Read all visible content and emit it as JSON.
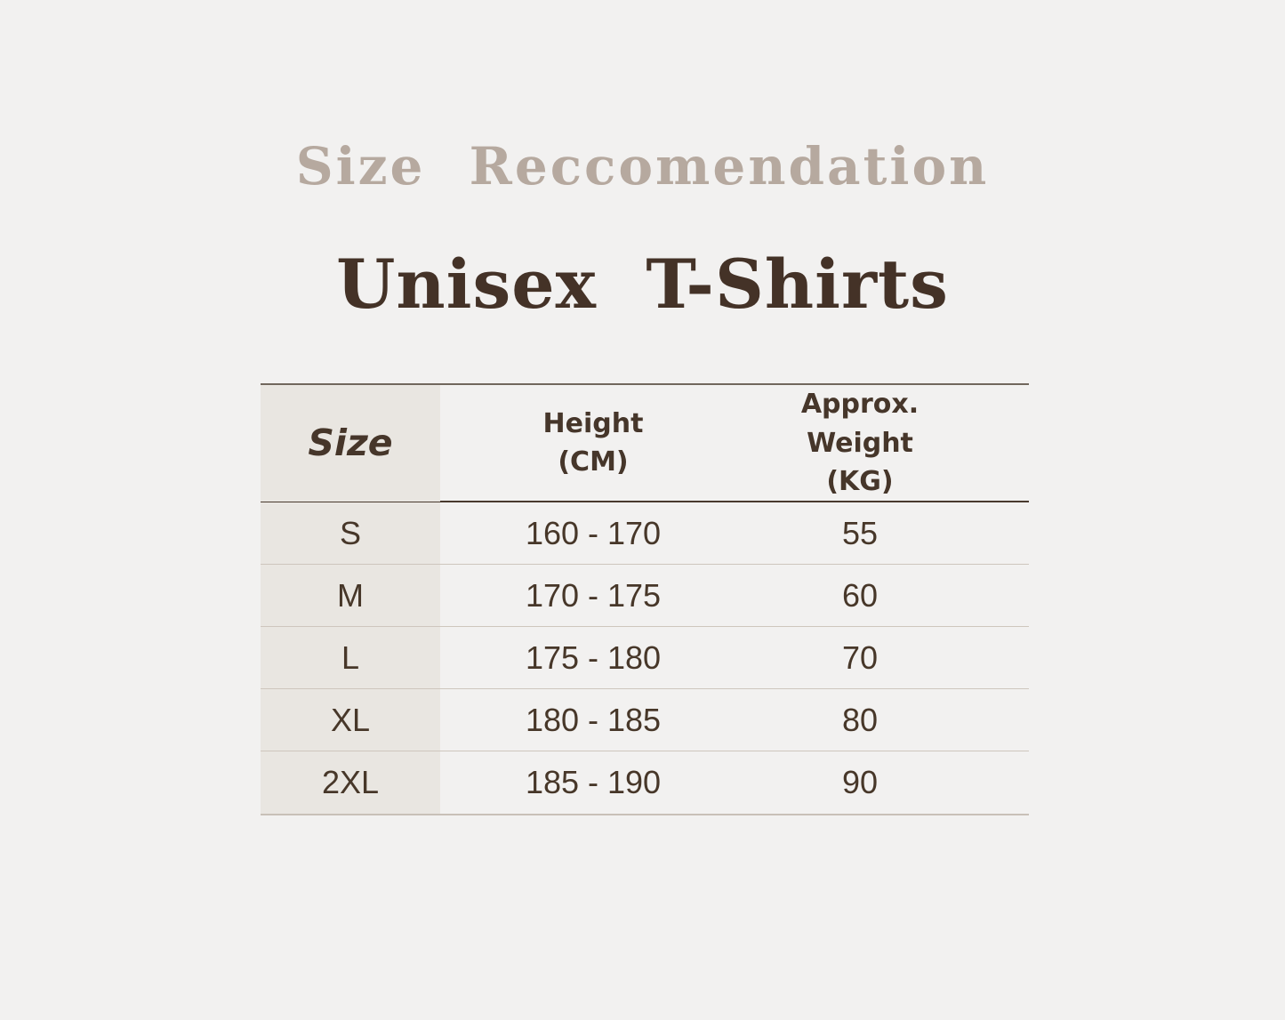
{
  "header": {
    "title": "Size Reccomendation",
    "heading": "Unisex T-Shirts"
  },
  "colors": {
    "page_background": "#f2f1f0",
    "title_taupe": "#b6a99f",
    "heading_brown": "#443227",
    "table_text": "#473729",
    "size_column_background": "#e9e6e1",
    "table_top_border": "#71675d",
    "header_bottom_border": "#493a2e",
    "row_separator": "#cec6bd",
    "table_bottom_border": "#c8c0b7"
  },
  "table": {
    "columns": [
      {
        "label": "Size",
        "sublabel": ""
      },
      {
        "label": "Height",
        "sublabel": "(CM)"
      },
      {
        "label": "Approx. Weight",
        "sublabel": "(KG)"
      }
    ],
    "rows": [
      {
        "size": "S",
        "height": "160 - 170",
        "weight": "55"
      },
      {
        "size": "M",
        "height": "170 - 175",
        "weight": "60"
      },
      {
        "size": "L",
        "height": "175 - 180",
        "weight": "70"
      },
      {
        "size": "XL",
        "height": "180 - 185",
        "weight": "80"
      },
      {
        "size": "2XL",
        "height": "185 - 190",
        "weight": "90"
      }
    ]
  },
  "chart_data": {
    "type": "table",
    "title": "Size Reccomendation",
    "subtitle": "Unisex T-Shirts",
    "columns": [
      "Size",
      "Height (CM)",
      "Approx. Weight (KG)"
    ],
    "rows": [
      [
        "S",
        "160 - 170",
        "55"
      ],
      [
        "M",
        "170 - 175",
        "60"
      ],
      [
        "L",
        "175 - 180",
        "70"
      ],
      [
        "XL",
        "180 - 185",
        "80"
      ],
      [
        "2XL",
        "185 - 190",
        "90"
      ]
    ]
  }
}
